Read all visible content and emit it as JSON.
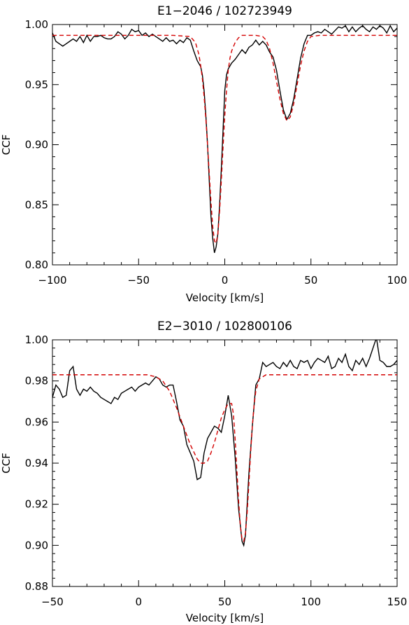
{
  "chart_data": [
    {
      "type": "line",
      "title": "E1−2046 / 102723949",
      "xlabel": "Velocity [km/s]",
      "ylabel": "CCF",
      "xlim": [
        -100,
        100
      ],
      "ylim": [
        0.8,
        1.0
      ],
      "xticks": [
        -100,
        -50,
        0,
        50,
        100
      ],
      "xtick_labels": [
        "−100",
        "−50",
        "0",
        "50",
        "100"
      ],
      "yticks": [
        0.8,
        0.85,
        0.9,
        0.95,
        1.0
      ],
      "ytick_labels": [
        "0.80",
        "0.85",
        "0.90",
        "0.95",
        "1.00"
      ],
      "grid": false,
      "series": [
        {
          "style": "solid",
          "color": "#000000",
          "x": [
            -100,
            -98,
            -96,
            -94,
            -92,
            -90,
            -88,
            -86,
            -84,
            -82,
            -80,
            -78,
            -76,
            -74,
            -72,
            -70,
            -68,
            -66,
            -64,
            -62,
            -60,
            -58,
            -56,
            -54,
            -52,
            -50,
            -48,
            -46,
            -44,
            -42,
            -40,
            -38,
            -36,
            -34,
            -32,
            -30,
            -28,
            -26,
            -24,
            -22,
            -20,
            -18,
            -16,
            -14,
            -13,
            -12,
            -11,
            -10,
            -9,
            -8,
            -7,
            -6,
            -5,
            -4,
            -3,
            -2,
            -1,
            0,
            1,
            2,
            4,
            6,
            8,
            10,
            12,
            14,
            16,
            18,
            20,
            22,
            24,
            26,
            28,
            30,
            32,
            34,
            36,
            38,
            40,
            42,
            44,
            46,
            48,
            50,
            52,
            54,
            56,
            58,
            60,
            62,
            64,
            66,
            68,
            70,
            72,
            74,
            76,
            78,
            80,
            82,
            84,
            86,
            88,
            90,
            92,
            94,
            96,
            98,
            100
          ],
          "y": [
            0.993,
            0.986,
            0.984,
            0.982,
            0.984,
            0.986,
            0.988,
            0.986,
            0.99,
            0.985,
            0.991,
            0.986,
            0.99,
            0.99,
            0.991,
            0.989,
            0.988,
            0.988,
            0.99,
            0.994,
            0.992,
            0.988,
            0.991,
            0.996,
            0.994,
            0.995,
            0.991,
            0.993,
            0.99,
            0.992,
            0.99,
            0.988,
            0.986,
            0.989,
            0.986,
            0.987,
            0.984,
            0.987,
            0.985,
            0.989,
            0.987,
            0.978,
            0.97,
            0.965,
            0.958,
            0.945,
            0.925,
            0.9,
            0.87,
            0.84,
            0.822,
            0.81,
            0.815,
            0.826,
            0.85,
            0.88,
            0.912,
            0.945,
            0.958,
            0.963,
            0.968,
            0.971,
            0.975,
            0.979,
            0.976,
            0.981,
            0.983,
            0.987,
            0.983,
            0.986,
            0.983,
            0.977,
            0.973,
            0.962,
            0.945,
            0.929,
            0.921,
            0.926,
            0.938,
            0.955,
            0.972,
            0.984,
            0.991,
            0.991,
            0.993,
            0.994,
            0.993,
            0.996,
            0.994,
            0.992,
            0.995,
            0.998,
            0.997,
            0.999,
            0.994,
            0.998,
            0.994,
            0.997,
            0.999,
            0.996,
            0.994,
            0.998,
            0.996,
            0.999,
            0.997,
            0.993,
            0.999,
            0.994,
            0.997
          ]
        },
        {
          "style": "dashed",
          "color": "#d40000",
          "x": [
            -100,
            -50,
            -30,
            -20,
            -17,
            -15,
            -14,
            -13,
            -12,
            -11,
            -10,
            -9,
            -8,
            -7,
            -6,
            -5,
            -4,
            -3,
            -2,
            -1,
            0,
            1,
            2,
            3,
            4,
            6,
            8,
            10,
            14,
            18,
            22,
            24,
            26,
            28,
            30,
            32,
            34,
            36,
            38,
            40,
            42,
            44,
            46,
            48,
            50,
            55,
            60,
            80,
            100
          ],
          "y": [
            0.991,
            0.991,
            0.991,
            0.99,
            0.985,
            0.975,
            0.966,
            0.955,
            0.94,
            0.922,
            0.9,
            0.876,
            0.852,
            0.832,
            0.82,
            0.818,
            0.826,
            0.845,
            0.87,
            0.898,
            0.924,
            0.945,
            0.962,
            0.972,
            0.978,
            0.985,
            0.989,
            0.991,
            0.991,
            0.991,
            0.99,
            0.987,
            0.98,
            0.968,
            0.953,
            0.938,
            0.926,
            0.92,
            0.923,
            0.934,
            0.95,
            0.966,
            0.978,
            0.986,
            0.99,
            0.991,
            0.991,
            0.991,
            0.991
          ]
        }
      ]
    },
    {
      "type": "line",
      "title": "E2−3010 / 102800106",
      "xlabel": "Velocity [km/s]",
      "ylabel": "CCF",
      "xlim": [
        -50,
        150
      ],
      "ylim": [
        0.88,
        1.0
      ],
      "xticks": [
        -50,
        0,
        50,
        100,
        150
      ],
      "xtick_labels": [
        "−50",
        "0",
        "50",
        "100",
        "150"
      ],
      "yticks": [
        0.88,
        0.9,
        0.92,
        0.94,
        0.96,
        0.98,
        1.0
      ],
      "ytick_labels": [
        "0.88",
        "0.90",
        "0.92",
        "0.94",
        "0.96",
        "0.98",
        "1.00"
      ],
      "grid": false,
      "series": [
        {
          "style": "solid",
          "color": "#000000",
          "x": [
            -50,
            -48,
            -46,
            -44,
            -42,
            -40,
            -38,
            -36,
            -34,
            -32,
            -30,
            -28,
            -26,
            -24,
            -22,
            -20,
            -18,
            -16,
            -14,
            -12,
            -10,
            -8,
            -6,
            -4,
            -2,
            0,
            2,
            4,
            6,
            8,
            10,
            12,
            14,
            16,
            18,
            20,
            22,
            24,
            26,
            28,
            30,
            32,
            34,
            36,
            38,
            40,
            42,
            44,
            46,
            48,
            50,
            52,
            54,
            56,
            58,
            60,
            61,
            62,
            64,
            66,
            68,
            70,
            72,
            74,
            76,
            78,
            80,
            82,
            84,
            86,
            88,
            90,
            92,
            94,
            96,
            98,
            100,
            102,
            104,
            106,
            108,
            110,
            112,
            114,
            116,
            118,
            120,
            122,
            124,
            126,
            128,
            130,
            132,
            134,
            136,
            138,
            140,
            142,
            144,
            146,
            148,
            150
          ],
          "y": [
            0.972,
            0.978,
            0.976,
            0.972,
            0.973,
            0.985,
            0.987,
            0.976,
            0.973,
            0.976,
            0.975,
            0.977,
            0.975,
            0.974,
            0.972,
            0.971,
            0.97,
            0.969,
            0.972,
            0.971,
            0.974,
            0.975,
            0.976,
            0.977,
            0.975,
            0.977,
            0.978,
            0.979,
            0.978,
            0.98,
            0.982,
            0.981,
            0.978,
            0.977,
            0.978,
            0.978,
            0.97,
            0.961,
            0.958,
            0.949,
            0.945,
            0.941,
            0.932,
            0.933,
            0.945,
            0.952,
            0.955,
            0.958,
            0.957,
            0.955,
            0.963,
            0.973,
            0.963,
            0.943,
            0.918,
            0.902,
            0.9,
            0.905,
            0.935,
            0.958,
            0.978,
            0.981,
            0.989,
            0.987,
            0.988,
            0.989,
            0.987,
            0.986,
            0.989,
            0.987,
            0.99,
            0.987,
            0.986,
            0.99,
            0.989,
            0.99,
            0.986,
            0.989,
            0.991,
            0.99,
            0.989,
            0.992,
            0.986,
            0.987,
            0.991,
            0.989,
            0.993,
            0.987,
            0.985,
            0.99,
            0.988,
            0.991,
            0.987,
            0.991,
            0.996,
            1.001,
            0.99,
            0.989,
            0.987,
            0.987,
            0.988,
            0.99
          ]
        },
        {
          "style": "dashed",
          "color": "#d40000",
          "x": [
            -50,
            -30,
            -10,
            0,
            5,
            10,
            14,
            18,
            22,
            26,
            30,
            34,
            36,
            38,
            40,
            42,
            44,
            46,
            48,
            50,
            52,
            54,
            55,
            56,
            57,
            58,
            59,
            60,
            61,
            62,
            63,
            64,
            65,
            66,
            67,
            68,
            70,
            74,
            90,
            120,
            150
          ],
          "y": [
            0.983,
            0.983,
            0.983,
            0.983,
            0.983,
            0.982,
            0.98,
            0.975,
            0.967,
            0.958,
            0.949,
            0.942,
            0.94,
            0.94,
            0.941,
            0.945,
            0.95,
            0.956,
            0.962,
            0.966,
            0.969,
            0.969,
            0.964,
            0.952,
            0.937,
            0.922,
            0.91,
            0.903,
            0.902,
            0.906,
            0.916,
            0.93,
            0.945,
            0.958,
            0.968,
            0.975,
            0.981,
            0.983,
            0.983,
            0.983,
            0.983
          ]
        }
      ]
    }
  ]
}
